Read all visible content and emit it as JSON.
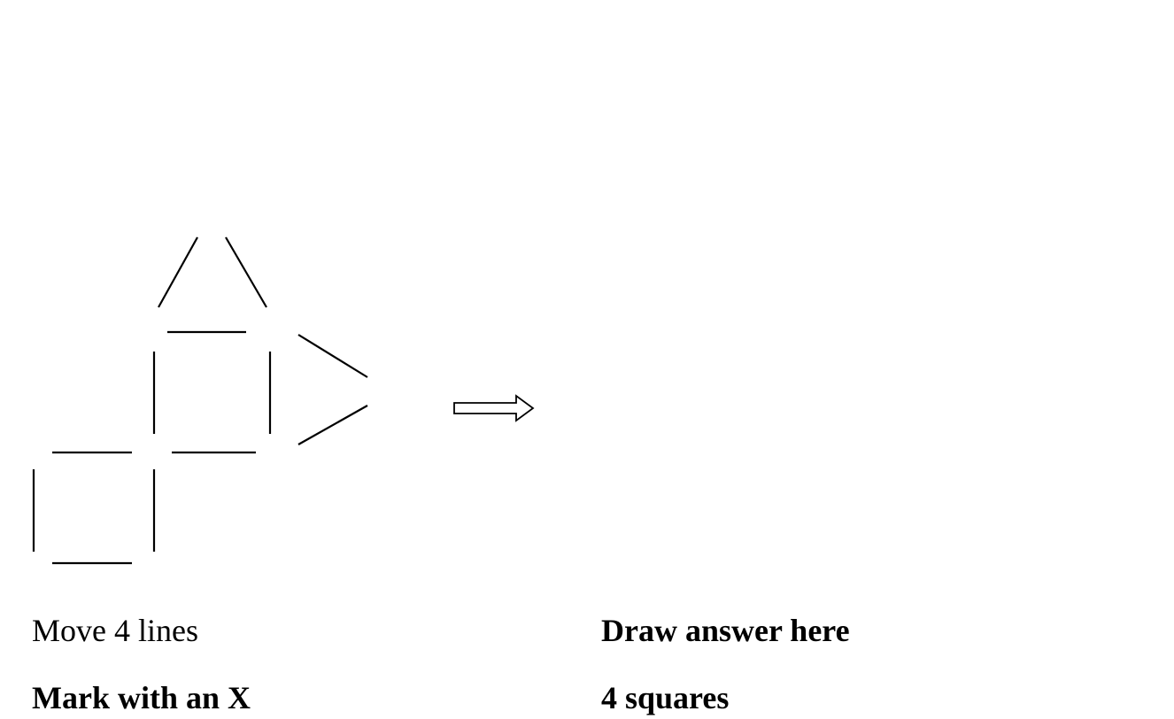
{
  "instructions": {
    "move": "Move 4 lines",
    "mark": "Mark with an X",
    "draw": "Draw answer here",
    "goal": "4 squares"
  },
  "colors": {
    "stroke": "#000000",
    "background": "#ffffff"
  },
  "arrow_icon": "right-arrow-icon"
}
